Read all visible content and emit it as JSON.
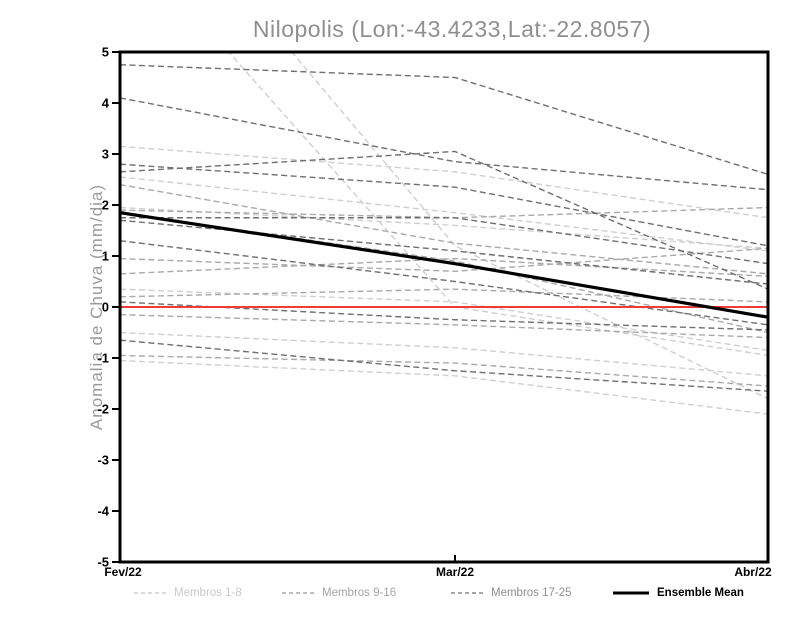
{
  "title": "Nilopolis (Lon:-43.4233,Lat:-22.8057)",
  "chart_data": {
    "type": "line",
    "title": "Nilopolis (Lon:-43.4233,Lat:-22.8057)",
    "xlabel": "",
    "ylabel": "Anomalia de Chuva (mm/dia)",
    "x_labels": [
      "Fev/22",
      "Mar/22",
      "Abr/22"
    ],
    "ylim": [
      -5,
      5
    ],
    "yticks": [
      5,
      4,
      3,
      2,
      1,
      0,
      -1,
      -2,
      -3,
      -4,
      -5
    ],
    "grid": false,
    "legend_position": "bottom",
    "axis_color": "#000000",
    "zero_line": {
      "value": 0,
      "color": "#ee3a3a"
    },
    "groups": [
      {
        "name": "Membros 1-8",
        "color": "#cfcfcf",
        "style": "dashed",
        "members": [
          [
            7.4,
            0.0,
            -0.95
          ],
          [
            9.0,
            1.2,
            -1.8
          ],
          [
            3.15,
            2.65,
            1.75
          ],
          [
            2.55,
            1.85,
            1.1
          ],
          [
            1.95,
            1.6,
            1.15
          ],
          [
            0.35,
            0.1,
            -0.85
          ],
          [
            -0.5,
            -0.8,
            -1.35
          ],
          [
            -1.05,
            -1.35,
            -2.1
          ]
        ]
      },
      {
        "name": "Membros 9-16",
        "color": "#a9a9a9",
        "style": "dashed",
        "members": [
          [
            2.4,
            1.25,
            0.65
          ],
          [
            1.9,
            1.75,
            1.95
          ],
          [
            0.95,
            0.7,
            1.15
          ],
          [
            0.65,
            0.95,
            0.6
          ],
          [
            0.2,
            0.35,
            0.1
          ],
          [
            -0.15,
            -0.35,
            -0.6
          ],
          [
            -0.95,
            -1.1,
            -1.55
          ],
          [
            1.85,
            0.9,
            -0.5
          ]
        ]
      },
      {
        "name": "Membros 17-25",
        "color": "#6f6f6f",
        "style": "dashed",
        "members": [
          [
            4.75,
            4.5,
            2.6
          ],
          [
            4.1,
            2.85,
            2.3
          ],
          [
            2.8,
            2.35,
            1.2
          ],
          [
            2.65,
            3.05,
            0.35
          ],
          [
            1.75,
            1.75,
            0.85
          ],
          [
            1.7,
            1.1,
            0.45
          ],
          [
            1.3,
            0.5,
            -0.35
          ],
          [
            0.1,
            -0.25,
            -0.45
          ],
          [
            -0.65,
            -1.25,
            -1.65
          ]
        ]
      }
    ],
    "ensemble_mean": {
      "name": "Ensemble Mean",
      "color": "#000000",
      "style": "solid",
      "values": [
        1.85,
        0.85,
        -0.2
      ]
    }
  }
}
